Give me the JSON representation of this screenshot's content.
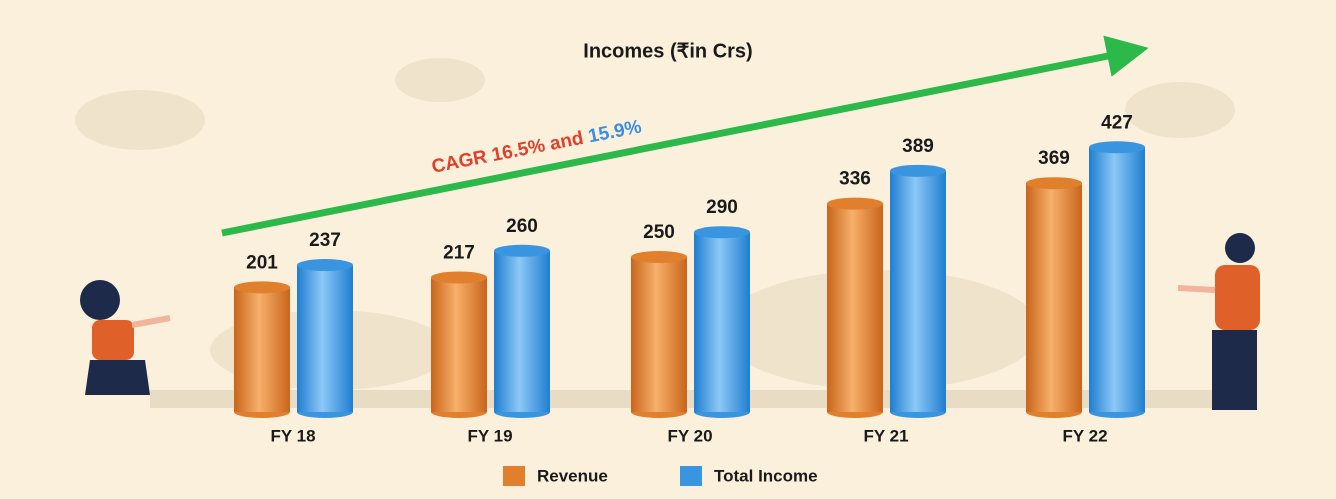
{
  "chart_data": {
    "type": "bar",
    "title": "Incomes (₹in Crs)",
    "annotation": [
      {
        "text": "CAGR 16.5% and",
        "color": "#e0402a"
      },
      {
        "text": "15.9%",
        "color": "#3b8fe0"
      }
    ],
    "categories": [
      "FY 18",
      "FY 19",
      "FY 20",
      "FY 21",
      "FY 22"
    ],
    "series": [
      {
        "name": "Revenue",
        "color": "#e07f2c",
        "values": [
          201,
          217,
          250,
          336,
          369
        ]
      },
      {
        "name": "Total Income",
        "color": "#3a95e0",
        "values": [
          237,
          260,
          290,
          389,
          427
        ]
      }
    ]
  }
}
